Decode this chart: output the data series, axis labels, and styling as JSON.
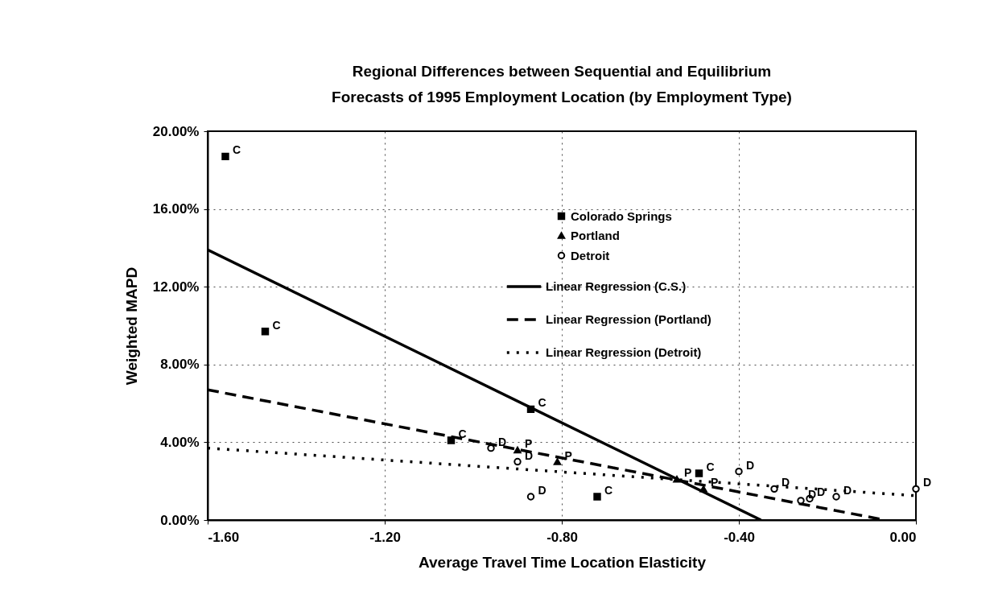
{
  "chart_data": {
    "type": "scatter",
    "title": "Regional Differences between Sequential and Equilibrium\nForecasts of 1995 Employment Location (by Employment Type)",
    "xlabel": "Average Travel Time Location Elasticity",
    "ylabel": "Weighted MAPD",
    "xlim": [
      -1.6,
      0
    ],
    "ylim": [
      0,
      20
    ],
    "xticks": [
      {
        "value": -1.6,
        "label": "-1.60"
      },
      {
        "value": -1.2,
        "label": "-1.20"
      },
      {
        "value": -0.8,
        "label": "-0.80"
      },
      {
        "value": -0.4,
        "label": "-0.40"
      },
      {
        "value": 0,
        "label": "0.00"
      }
    ],
    "yticks": [
      {
        "value": 0,
        "label": "0.00%"
      },
      {
        "value": 4,
        "label": "4.00%"
      },
      {
        "value": 8,
        "label": "8.00%"
      },
      {
        "value": 12,
        "label": "12.00%"
      },
      {
        "value": 16,
        "label": "16.00%"
      },
      {
        "value": 20,
        "label": "20.00%"
      }
    ],
    "grid": true,
    "legend": "top right",
    "series": [
      {
        "name": "Colorado Springs",
        "marker": "square",
        "color": "#000000",
        "x": [
          -1.56,
          -1.47,
          -1.05,
          -0.87,
          -0.72,
          -0.49
        ],
        "values": [
          18.7,
          9.7,
          4.1,
          5.7,
          1.2,
          2.4
        ]
      },
      {
        "name": "Portland",
        "marker": "triangle",
        "color": "#000000",
        "x": [
          -0.9,
          -0.81,
          -0.54,
          -0.48
        ],
        "values": [
          3.6,
          3.0,
          2.1,
          1.6
        ]
      },
      {
        "name": "Detroit",
        "marker": "circle",
        "color": "#000000",
        "x": [
          -0.96,
          -0.9,
          -0.87,
          -0.4,
          -0.32,
          -0.26,
          -0.24,
          -0.18,
          0.0
        ],
        "values": [
          3.7,
          3.0,
          1.2,
          2.5,
          1.6,
          1.0,
          1.1,
          1.2,
          1.6
        ]
      },
      {
        "name": "Linear Regression (C.S.)",
        "type": "line",
        "line_style": "solid",
        "color": "#000000",
        "x": [
          -1.6,
          -0.35
        ],
        "values": [
          13.9,
          0
        ]
      },
      {
        "name": "Linear Regression (Portland)",
        "type": "line",
        "line_style": "dashed",
        "color": "#000000",
        "x": [
          -1.6,
          -0.07
        ],
        "values": [
          6.7,
          0
        ]
      },
      {
        "name": "Linear Regression (Detroit)",
        "type": "line",
        "line_style": "dotted",
        "color": "#000000",
        "x": [
          -1.6,
          0.0
        ],
        "values": [
          3.7,
          1.25
        ]
      }
    ],
    "annotations": [
      {
        "text": "C",
        "x": -1.56,
        "y": 18.7
      },
      {
        "text": "C",
        "x": -1.47,
        "y": 9.7
      },
      {
        "text": "C",
        "x": -1.05,
        "y": 4.1
      },
      {
        "text": "C",
        "x": -0.87,
        "y": 5.7
      },
      {
        "text": "C",
        "x": -0.72,
        "y": 1.2
      },
      {
        "text": "C",
        "x": -0.49,
        "y": 2.4
      },
      {
        "text": "P",
        "x": -0.9,
        "y": 3.6
      },
      {
        "text": "P",
        "x": -0.81,
        "y": 3.0
      },
      {
        "text": "P",
        "x": -0.54,
        "y": 2.1
      },
      {
        "text": "P",
        "x": -0.48,
        "y": 1.6
      },
      {
        "text": "D",
        "x": -0.96,
        "y": 3.7
      },
      {
        "text": "D",
        "x": -0.9,
        "y": 3.0
      },
      {
        "text": "D",
        "x": -0.87,
        "y": 1.2
      },
      {
        "text": "D",
        "x": -0.4,
        "y": 2.5
      },
      {
        "text": "D",
        "x": -0.32,
        "y": 1.6
      },
      {
        "text": "D",
        "x": -0.26,
        "y": 1.0
      },
      {
        "text": "D",
        "x": -0.24,
        "y": 1.1
      },
      {
        "text": "D",
        "x": -0.18,
        "y": 1.2
      },
      {
        "text": "D",
        "x": 0.0,
        "y": 1.6
      }
    ]
  }
}
